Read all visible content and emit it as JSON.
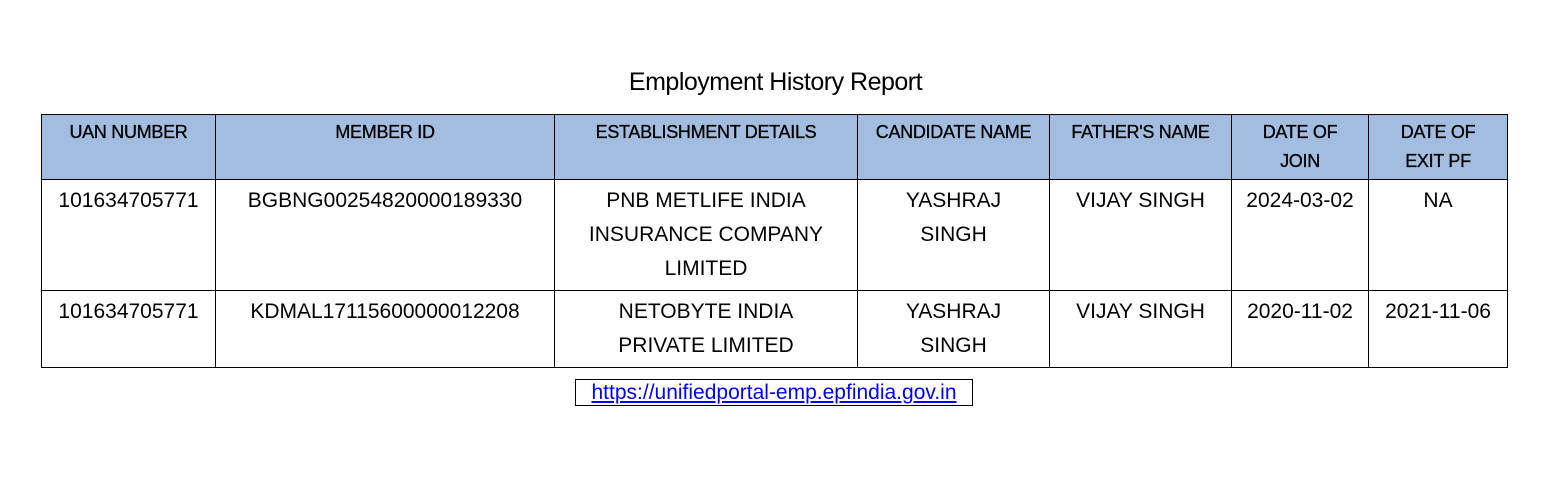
{
  "report": {
    "title": "Employment History Report",
    "columns": [
      "UAN NUMBER",
      "MEMBER ID",
      "ESTABLISHMENT DETAILS",
      "CANDIDATE NAME",
      "FATHER'S NAME",
      "DATE OF JOIN",
      "DATE OF EXIT PF"
    ],
    "rows": [
      [
        "101634705771",
        "BGBNG00254820000189330",
        "PNB METLIFE INDIA INSURANCE COMPANY LIMITED",
        "YASHRAJ SINGH",
        "VIJAY SINGH",
        "2024-03-02",
        "NA"
      ],
      [
        "101634705771",
        "KDMAL17115600000012208",
        "NETOBYTE INDIA PRIVATE LIMITED",
        "YASHRAJ SINGH",
        "VIJAY SINGH",
        "2020-11-02",
        "2021-11-06"
      ]
    ],
    "header_color": "#a3bde0",
    "link": "https://unifiedportal-emp.epfindia.gov.in",
    "link_color": "#0000ee"
  }
}
